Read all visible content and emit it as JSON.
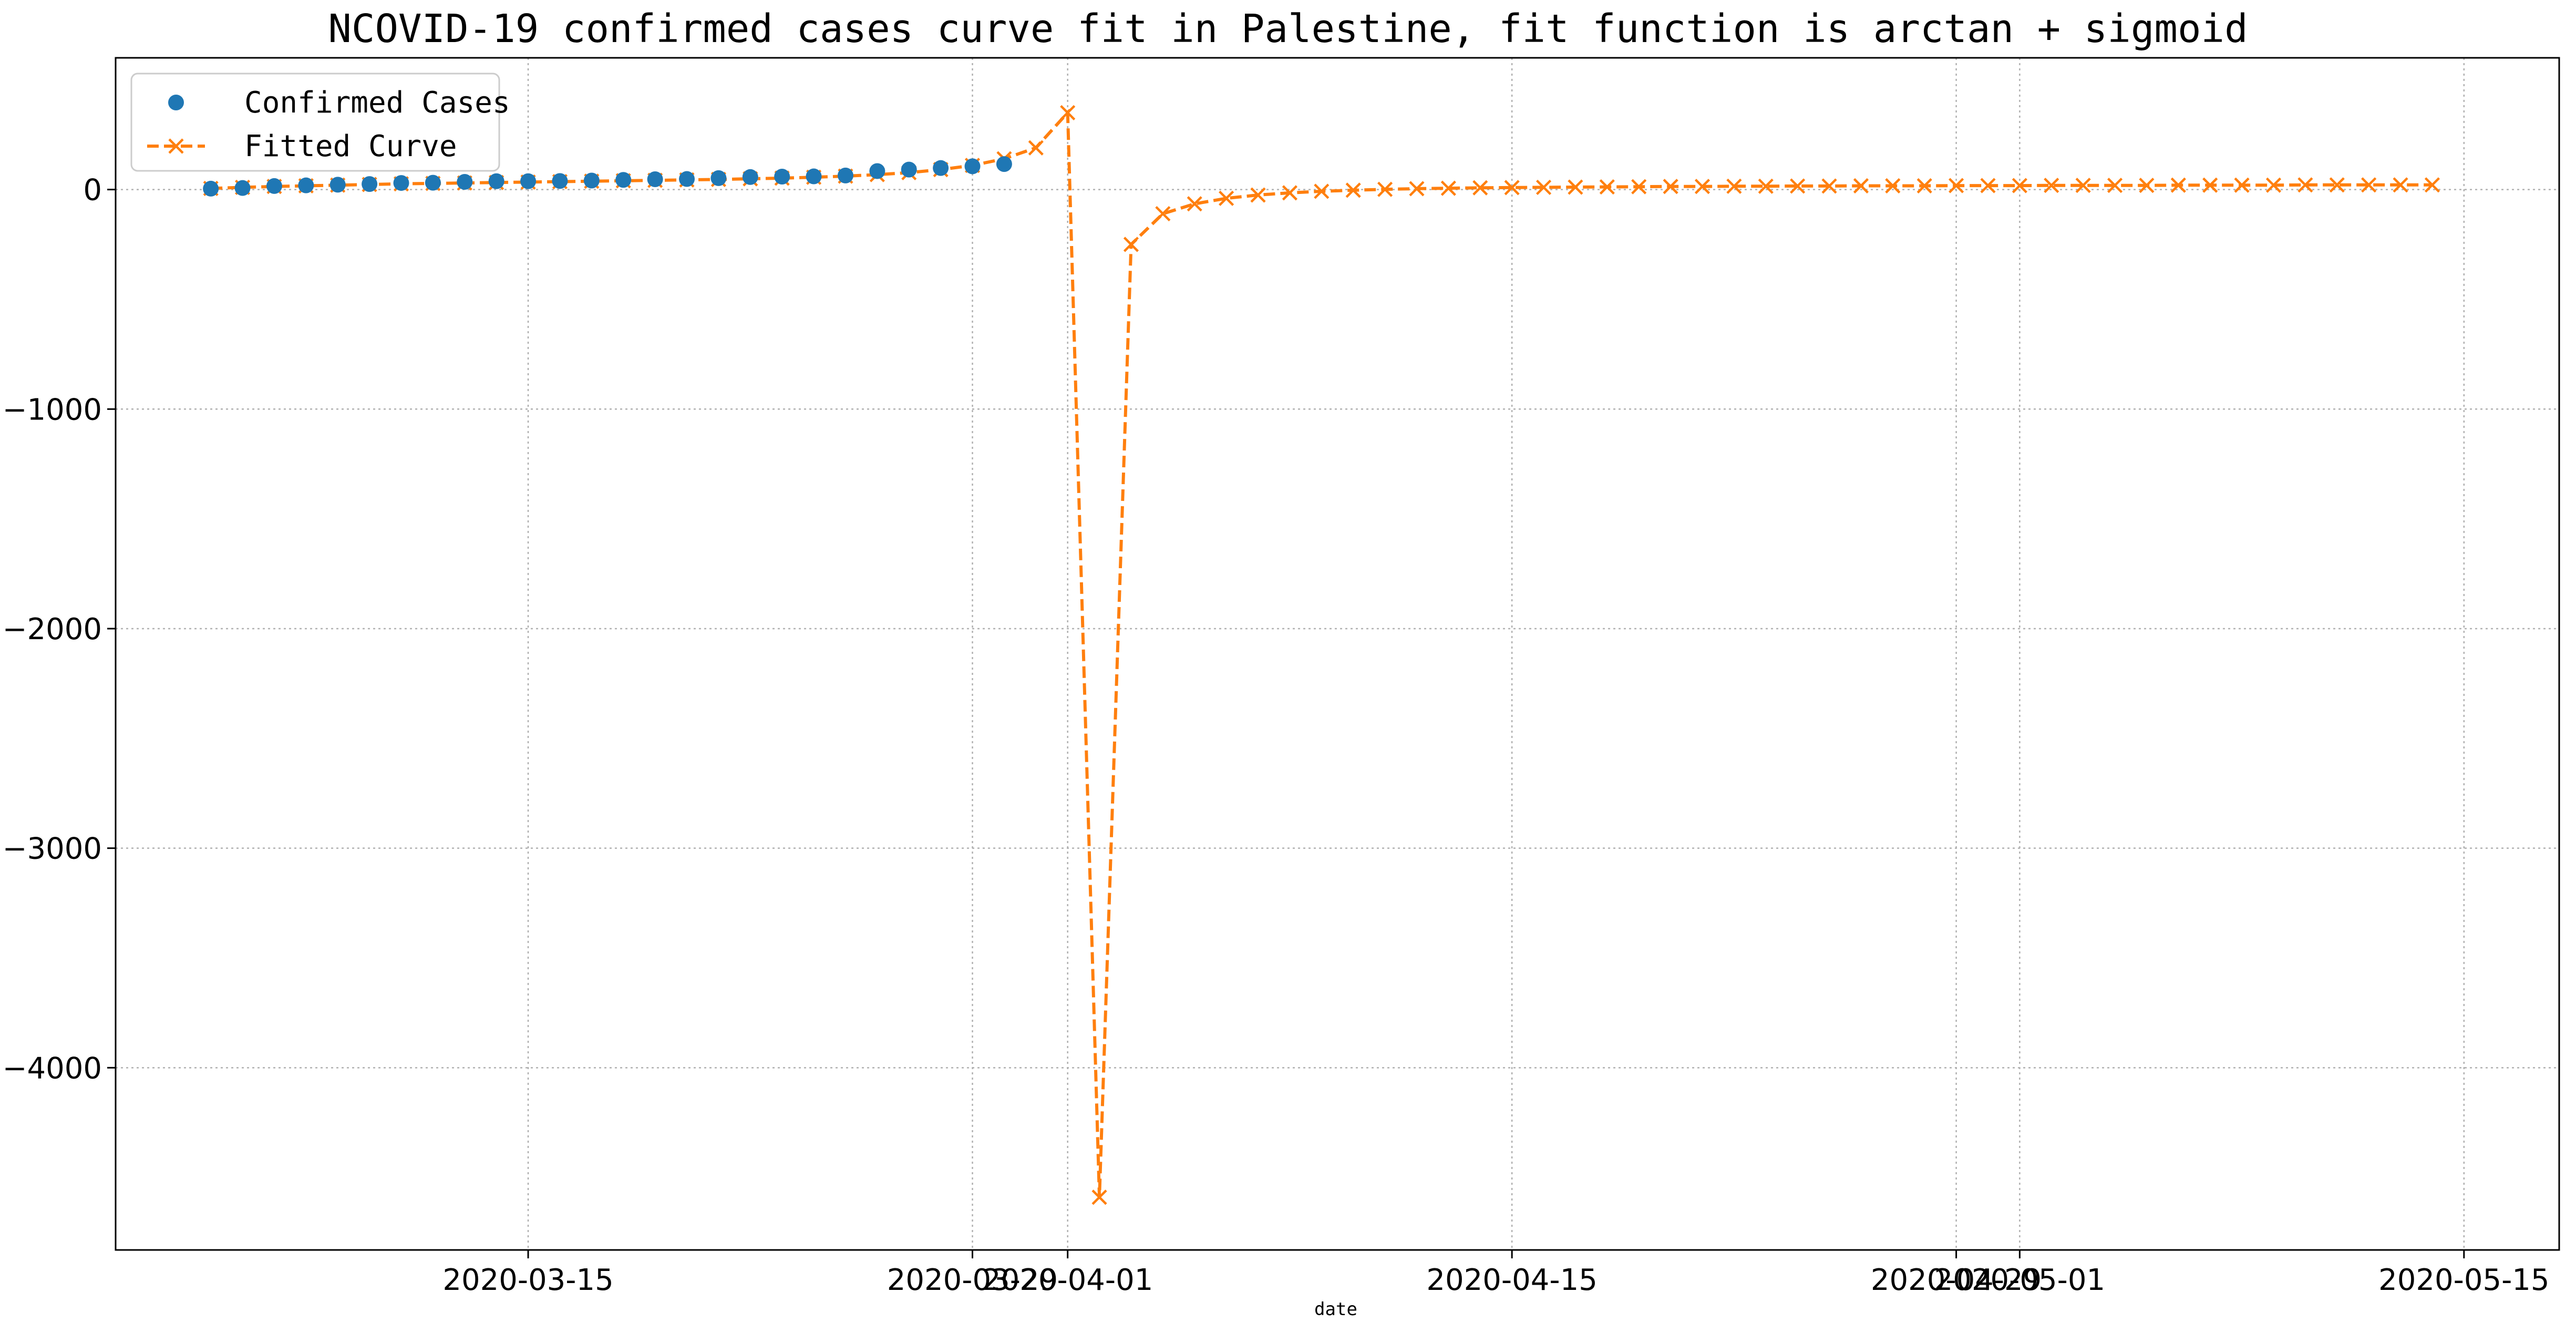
{
  "chart_data": {
    "type": "line",
    "title": "NCOVID-19 confirmed cases curve fit in Palestine, fit function is arctan + sigmoid",
    "xlabel": "date",
    "ylabel": "",
    "x_axis_type": "date",
    "xlim": [
      "2020-03-02",
      "2020-05-18"
    ],
    "ylim": [
      -4830,
      600
    ],
    "x_ticks": [
      "2020-03-15",
      "2020-03-29",
      "2020-04-01",
      "2020-04-15",
      "2020-04-29",
      "2020-05-01",
      "2020-05-15"
    ],
    "y_ticks": [
      0,
      -1000,
      -2000,
      -3000,
      -4000
    ],
    "y_tick_labels": [
      "0",
      "−1000",
      "−2000",
      "−3000",
      "−4000"
    ],
    "grid": true,
    "legend_position": "top-left",
    "colors": {
      "confirmed": "#1f77b4",
      "fitted": "#ff7f0e",
      "grid": "#b0b0b0"
    },
    "series": [
      {
        "name": "Confirmed Cases",
        "style": "markers",
        "x": [
          "2020-03-05",
          "2020-03-06",
          "2020-03-07",
          "2020-03-08",
          "2020-03-09",
          "2020-03-10",
          "2020-03-11",
          "2020-03-12",
          "2020-03-13",
          "2020-03-14",
          "2020-03-15",
          "2020-03-16",
          "2020-03-17",
          "2020-03-18",
          "2020-03-19",
          "2020-03-20",
          "2020-03-21",
          "2020-03-22",
          "2020-03-23",
          "2020-03-24",
          "2020-03-25",
          "2020-03-26",
          "2020-03-27",
          "2020-03-28",
          "2020-03-29",
          "2020-03-30"
        ],
        "y": [
          4,
          7,
          16,
          19,
          22,
          25,
          30,
          31,
          35,
          38,
          38,
          39,
          41,
          44,
          47,
          48,
          52,
          57,
          59,
          60,
          64,
          84,
          91,
          98,
          106,
          116
        ]
      },
      {
        "name": "Fitted Curve",
        "style": "dashed-x",
        "x": [
          "2020-03-05",
          "2020-03-06",
          "2020-03-07",
          "2020-03-08",
          "2020-03-09",
          "2020-03-10",
          "2020-03-11",
          "2020-03-12",
          "2020-03-13",
          "2020-03-14",
          "2020-03-15",
          "2020-03-16",
          "2020-03-17",
          "2020-03-18",
          "2020-03-19",
          "2020-03-20",
          "2020-03-21",
          "2020-03-22",
          "2020-03-23",
          "2020-03-24",
          "2020-03-25",
          "2020-03-26",
          "2020-03-27",
          "2020-03-28",
          "2020-03-29",
          "2020-03-30",
          "2020-03-31",
          "2020-04-01",
          "2020-04-02",
          "2020-04-03",
          "2020-04-04",
          "2020-04-05",
          "2020-04-06",
          "2020-04-07",
          "2020-04-08",
          "2020-04-09",
          "2020-04-10",
          "2020-04-11",
          "2020-04-12",
          "2020-04-13",
          "2020-04-14",
          "2020-04-15",
          "2020-04-16",
          "2020-04-17",
          "2020-04-18",
          "2020-04-19",
          "2020-04-20",
          "2020-04-21",
          "2020-04-22",
          "2020-04-23",
          "2020-04-24",
          "2020-04-25",
          "2020-04-26",
          "2020-04-27",
          "2020-04-28",
          "2020-04-29",
          "2020-04-30",
          "2020-05-01",
          "2020-05-02",
          "2020-05-03",
          "2020-05-04",
          "2020-05-05",
          "2020-05-06",
          "2020-05-07",
          "2020-05-08",
          "2020-05-09",
          "2020-05-10",
          "2020-05-11",
          "2020-05-12",
          "2020-05-13",
          "2020-05-14"
        ],
        "y": [
          5,
          10,
          14,
          17,
          20,
          23,
          26,
          28,
          30,
          32,
          34,
          36,
          38,
          40,
          42,
          44,
          46,
          49,
          52,
          56,
          61,
          68,
          77,
          91,
          110,
          140,
          190,
          350,
          -4590,
          -250,
          -110,
          -65,
          -40,
          -25,
          -15,
          -8,
          -3,
          1,
          4,
          6,
          8,
          9,
          10,
          11,
          12,
          13,
          14,
          14,
          15,
          15,
          16,
          16,
          17,
          17,
          17,
          18,
          18,
          18,
          19,
          19,
          19,
          19,
          20,
          20,
          20,
          20,
          21,
          21,
          21,
          21,
          21
        ]
      }
    ]
  }
}
